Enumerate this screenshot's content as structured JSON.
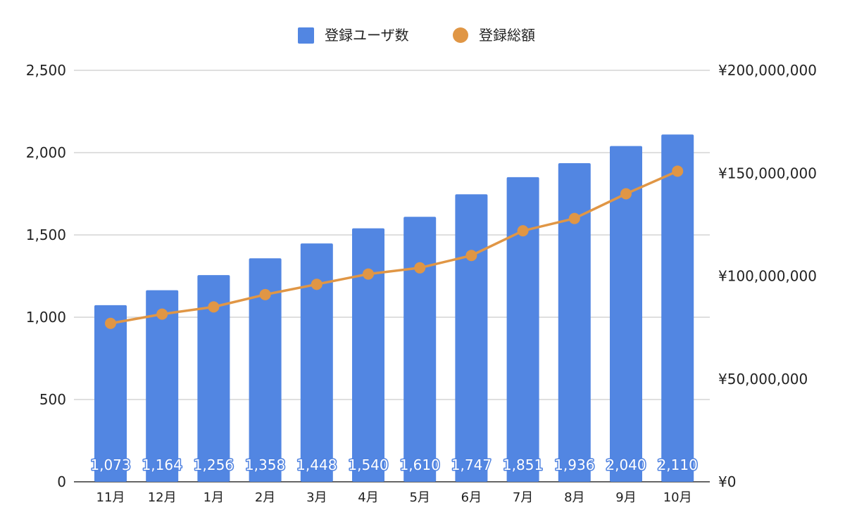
{
  "chart_data": {
    "type": "bar",
    "title": "",
    "xlabel": "",
    "ylabel": "",
    "categories": [
      "11月",
      "12月",
      "1月",
      "2月",
      "3月",
      "4月",
      "5月",
      "6月",
      "7月",
      "8月",
      "9月",
      "10月"
    ],
    "series": [
      {
        "name": "登録ユーザ数",
        "type": "bar",
        "axis": "left",
        "color": "#5286e2",
        "values": [
          1073,
          1164,
          1256,
          1358,
          1448,
          1540,
          1610,
          1747,
          1851,
          1936,
          2040,
          2110
        ],
        "labels": [
          "1,073",
          "1,164",
          "1,256",
          "1,358",
          "1,448",
          "1,540",
          "1,610",
          "1,747",
          "1,851",
          "1,936",
          "2,040",
          "2,110"
        ]
      },
      {
        "name": "登録総額",
        "type": "line",
        "axis": "right",
        "color": "#e09645",
        "values": [
          77000000,
          81500000,
          85000000,
          91000000,
          96000000,
          101000000,
          104000000,
          110000000,
          122000000,
          128000000,
          140000000,
          151000000
        ]
      }
    ],
    "left_axis": {
      "range": [
        0,
        2500
      ],
      "ticks": [
        0,
        500,
        1000,
        1500,
        2000,
        2500
      ],
      "tick_labels": [
        "0",
        "500",
        "1,000",
        "1,500",
        "2,000",
        "2,500"
      ]
    },
    "right_axis": {
      "range": [
        0,
        200000000
      ],
      "ticks": [
        0,
        50000000,
        100000000,
        150000000,
        200000000
      ],
      "tick_labels": [
        "¥0",
        "¥50,000,000",
        "¥100,000,000",
        "¥150,000,000",
        "¥200,000,000"
      ]
    },
    "grid": true,
    "legend": "top-center"
  }
}
